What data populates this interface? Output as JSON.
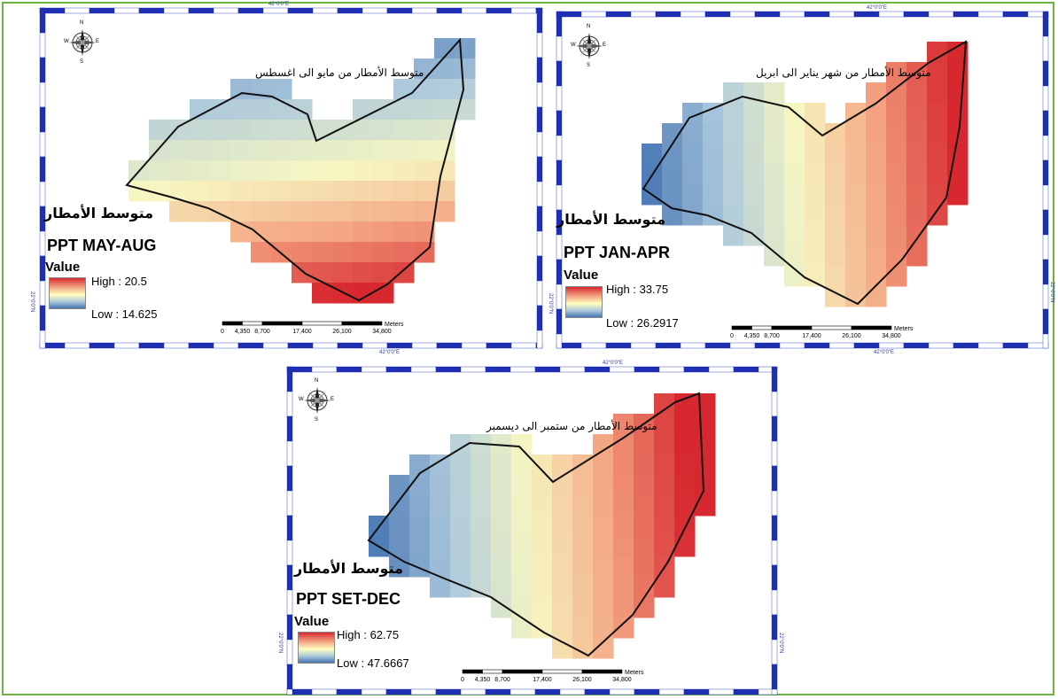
{
  "panels": [
    {
      "id": "may-aug",
      "subtitle_ar": "متوسط الأمطار من مايو الى اغسطس",
      "heading_ar": "متوسط الأمطار",
      "title": "PPT MAY-AUG",
      "legend_title": "Value",
      "high_label": "High : 20.5",
      "low_label": "Low : 14.625",
      "coord_top": "42°0'0\"E",
      "coord_bottom": "42°0'0\"E",
      "coord_left": "22°0'0\"N",
      "coord_right": "",
      "pattern": "southwest-wet"
    },
    {
      "id": "jan-apr",
      "subtitle_ar": "متوسط الأمطار من شهر يناير الى ابريل",
      "heading_ar": "متوسط الأمطار",
      "title": "PPT JAN-APR",
      "legend_title": "Value",
      "high_label": "High : 33.75",
      "low_label": "Low : 26.2917",
      "coord_top": "42°0'0\"E",
      "coord_bottom": "42°0'0\"E",
      "coord_left": "22°0'0\"N",
      "coord_right": "22°0'0\"N",
      "pattern": "east-wet"
    },
    {
      "id": "set-dec",
      "subtitle_ar": "متوسط الأمطار من ستمبر الى ديسمبر",
      "heading_ar": "متوسط الأمطار",
      "title": "PPT SET-DEC",
      "legend_title": "Value",
      "high_label": "High : 62.75",
      "low_label": "Low : 47.6667",
      "coord_top": "42°0'0\"E",
      "coord_bottom": "",
      "coord_left": "22°0'0\"N",
      "coord_right": "22°0'0\"N",
      "pattern": "east-wet"
    }
  ],
  "scale_bar": {
    "unit": "Meters",
    "ticks": [
      "0",
      "4,350",
      "8,700",
      "17,400",
      "26,100",
      "34,800"
    ]
  },
  "compass": {
    "n": "N",
    "s": "S",
    "e": "E",
    "w": "W"
  },
  "colors": {
    "ramp_high": "#d7282f",
    "ramp_mid": "#ffffbf",
    "ramp_low": "#4675b3",
    "frame_blue": "#1f2fb3",
    "outer_border": "#6cb33f"
  }
}
